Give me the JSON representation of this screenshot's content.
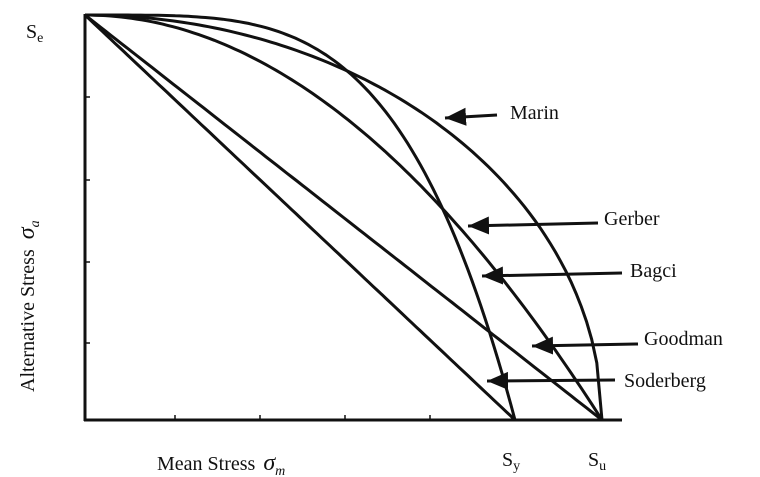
{
  "x_axis": {
    "label": "Mean Stress",
    "symbol": "σ",
    "subscript": "m"
  },
  "y_axis": {
    "label": "Alternative Stress",
    "symbol": "σ",
    "subscript": "a"
  },
  "points": {
    "se": {
      "symbol": "S",
      "subscript": "e"
    },
    "sy": {
      "symbol": "S",
      "subscript": "y"
    },
    "su": {
      "symbol": "S",
      "subscript": "u"
    }
  },
  "curves": [
    "Marin",
    "Gerber",
    "Bagci",
    "Goodman",
    "Soderberg"
  ]
}
